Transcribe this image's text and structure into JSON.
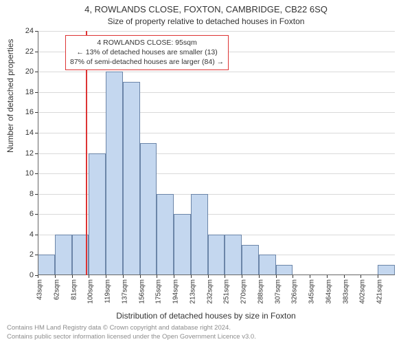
{
  "title_main": "4, ROWLANDS CLOSE, FOXTON, CAMBRIDGE, CB22 6SQ",
  "title_sub": "Size of property relative to detached houses in Foxton",
  "y_axis": {
    "label": "Number of detached properties",
    "min": 0,
    "max": 24,
    "tick_step": 2,
    "ticks": [
      0,
      2,
      4,
      6,
      8,
      10,
      12,
      14,
      16,
      18,
      20,
      22,
      24
    ]
  },
  "x_axis": {
    "label": "Distribution of detached houses by size in Foxton",
    "labels": [
      "43sqm",
      "62sqm",
      "81sqm",
      "100sqm",
      "119sqm",
      "137sqm",
      "156sqm",
      "175sqm",
      "194sqm",
      "213sqm",
      "232sqm",
      "251sqm",
      "270sqm",
      "288sqm",
      "307sqm",
      "326sqm",
      "345sqm",
      "364sqm",
      "383sqm",
      "402sqm",
      "421sqm"
    ]
  },
  "chart": {
    "type": "histogram",
    "bar_color": "#c4d7ef",
    "bar_border": "#6b85a8",
    "grid_color": "#d9d9d9",
    "background": "#ffffff",
    "values": [
      2,
      4,
      4,
      12,
      20,
      19,
      13,
      8,
      6,
      8,
      4,
      4,
      3,
      2,
      1,
      0,
      0,
      0,
      0,
      0,
      1
    ]
  },
  "marker": {
    "color": "#d33",
    "position_sqm": 95,
    "x_min_sqm": 43,
    "x_max_sqm": 430
  },
  "annotation": {
    "border_color": "#d33",
    "line1": "4 ROWLANDS CLOSE: 95sqm",
    "line2": "← 13% of detached houses are smaller (13)",
    "line3": "87% of semi-detached houses are larger (84) →"
  },
  "footer": {
    "line1": "Contains HM Land Registry data © Crown copyright and database right 2024.",
    "line2": "Contains public sector information licensed under the Open Government Licence v3.0."
  }
}
